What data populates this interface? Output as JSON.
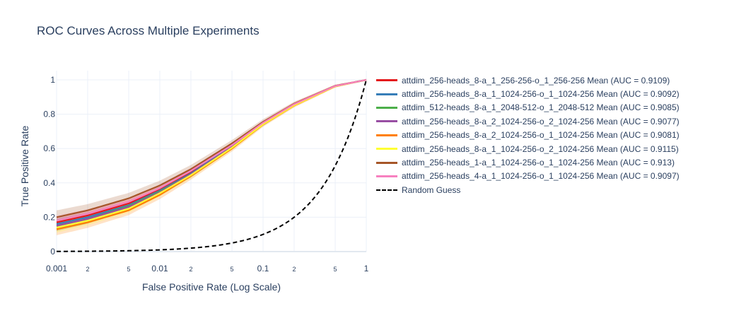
{
  "chart_data": {
    "type": "line",
    "title": "ROC Curves Across Multiple Experiments",
    "xlabel": "False Positive Rate (Log Scale)",
    "ylabel": "True Positive Rate",
    "xscale": "log",
    "xlim": [
      0.001,
      1
    ],
    "ylim": [
      0,
      1
    ],
    "grid": true,
    "legend_position": "right",
    "x_tick_labels": [
      "0.001",
      "2",
      "5",
      "0.01",
      "2",
      "5",
      "0.1",
      "2",
      "5",
      "1"
    ],
    "x_ticks": [
      0.001,
      0.002,
      0.005,
      0.01,
      0.02,
      0.05,
      0.1,
      0.2,
      0.5,
      1
    ],
    "y_tick_labels": [
      "0",
      "0.2",
      "0.4",
      "0.6",
      "0.8",
      "1"
    ],
    "y_ticks": [
      0,
      0.2,
      0.4,
      0.6,
      0.8,
      1
    ],
    "x": [
      0.001,
      0.002,
      0.005,
      0.01,
      0.02,
      0.05,
      0.1,
      0.2,
      0.5,
      1
    ],
    "series": [
      {
        "name": "attdim_256-heads_8-a_1_256-256-o_1_256-256 Mean (AUC = 0.9109)",
        "color": "#e41a1c",
        "values": [
          0.17,
          0.21,
          0.28,
          0.36,
          0.46,
          0.62,
          0.75,
          0.86,
          0.965,
          1.0
        ],
        "band": 0.03
      },
      {
        "name": "attdim_256-heads_8-a_1_1024-256-o_1_1024-256 Mean (AUC = 0.9092)",
        "color": "#377eb8",
        "values": [
          0.16,
          0.2,
          0.27,
          0.355,
          0.455,
          0.615,
          0.745,
          0.855,
          0.963,
          1.0
        ],
        "band": 0.03
      },
      {
        "name": "attdim_512-heads_8-a_1_2048-512-o_1_2048-512 Mean (AUC = 0.9085)",
        "color": "#4daf4a",
        "values": [
          0.15,
          0.19,
          0.265,
          0.35,
          0.45,
          0.61,
          0.745,
          0.855,
          0.963,
          1.0
        ],
        "band": 0.03
      },
      {
        "name": "attdim_256-heads_8-a_2_1024-256-o_2_1024-256 Mean (AUC = 0.9077)",
        "color": "#984ea3",
        "values": [
          0.15,
          0.19,
          0.26,
          0.345,
          0.45,
          0.61,
          0.745,
          0.855,
          0.962,
          1.0
        ],
        "band": 0.03
      },
      {
        "name": "attdim_256-heads_8-a_2_1024-256-o_1_1024-256 Mean (AUC = 0.9081)",
        "color": "#ff7f00",
        "values": [
          0.13,
          0.17,
          0.24,
          0.33,
          0.44,
          0.6,
          0.74,
          0.85,
          0.962,
          1.0
        ],
        "band": 0.035
      },
      {
        "name": "attdim_256-heads_8-a_1_1024-256-o_2_1024-256 Mean (AUC = 0.9115)",
        "color": "#ffff33",
        "values": [
          0.14,
          0.18,
          0.25,
          0.34,
          0.445,
          0.605,
          0.742,
          0.852,
          0.962,
          1.0
        ],
        "band": 0.03
      },
      {
        "name": "attdim_256-heads_1-a_1_1024-256-o_1_1024-256 Mean (AUC = 0.913)",
        "color": "#a65628",
        "values": [
          0.2,
          0.24,
          0.31,
          0.385,
          0.48,
          0.63,
          0.755,
          0.86,
          0.965,
          1.0
        ],
        "band": 0.04
      },
      {
        "name": "attdim_256-heads_4-a_1_1024-256-o_1_1024-256 Mean (AUC = 0.9097)",
        "color": "#f781bf",
        "values": [
          0.18,
          0.22,
          0.29,
          0.37,
          0.47,
          0.62,
          0.75,
          0.858,
          0.964,
          1.0
        ],
        "band": 0.03
      },
      {
        "name": "Random Guess",
        "color": "#000000",
        "dash": true,
        "values": [
          0.001,
          0.002,
          0.005,
          0.01,
          0.02,
          0.05,
          0.1,
          0.2,
          0.5,
          1.0
        ]
      }
    ]
  }
}
